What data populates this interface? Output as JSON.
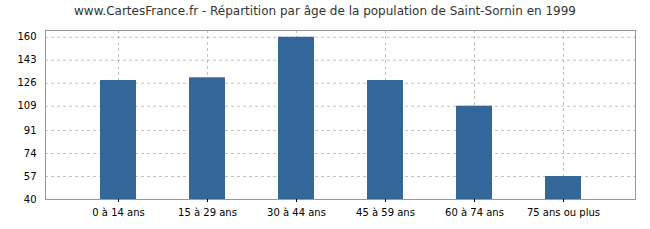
{
  "chart_data": {
    "type": "bar",
    "title": "www.CartesFrance.fr - Répartition par âge de la population de Saint-Sornin en 1999",
    "categories": [
      "0 à 14 ans",
      "15 à 29 ans",
      "30 à 44 ans",
      "45 à 59 ans",
      "60 à 74 ans",
      "75 ans ou plus"
    ],
    "values": [
      128,
      130,
      160,
      128,
      109,
      57
    ],
    "color": "#336699",
    "ylim": [
      40,
      165
    ],
    "yticks": [
      40,
      57,
      74,
      91,
      109,
      126,
      143,
      160
    ],
    "grid": true
  }
}
